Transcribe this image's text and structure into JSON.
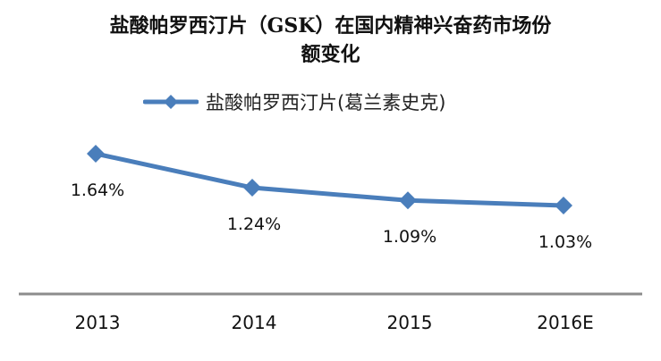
{
  "title_line1": "盐酸帕罗西汀片（GSK）在国内精神兴奋药市场份",
  "title_line2": "额变化",
  "legend": {
    "label": "盐酸帕罗西汀片(葛兰素史克)",
    "color": "#4a7ebb"
  },
  "colors": {
    "series": "#4a7ebb",
    "axis": "#8c8c8c"
  },
  "chart_data": {
    "type": "line",
    "title": "盐酸帕罗西汀片（GSK）在国内精神兴奋药市场份额变化",
    "xlabel": "",
    "ylabel": "",
    "categories": [
      "2013",
      "2014",
      "2015",
      "2016E"
    ],
    "series": [
      {
        "name": "盐酸帕罗西汀片(葛兰素史克)",
        "values": [
          1.64,
          1.24,
          1.09,
          1.03
        ],
        "unit": "%"
      }
    ],
    "data_labels": [
      "1.64%",
      "1.24%",
      "1.09%",
      "1.03%"
    ],
    "legend_position": "top",
    "grid": false,
    "y_axis_visible": false
  }
}
